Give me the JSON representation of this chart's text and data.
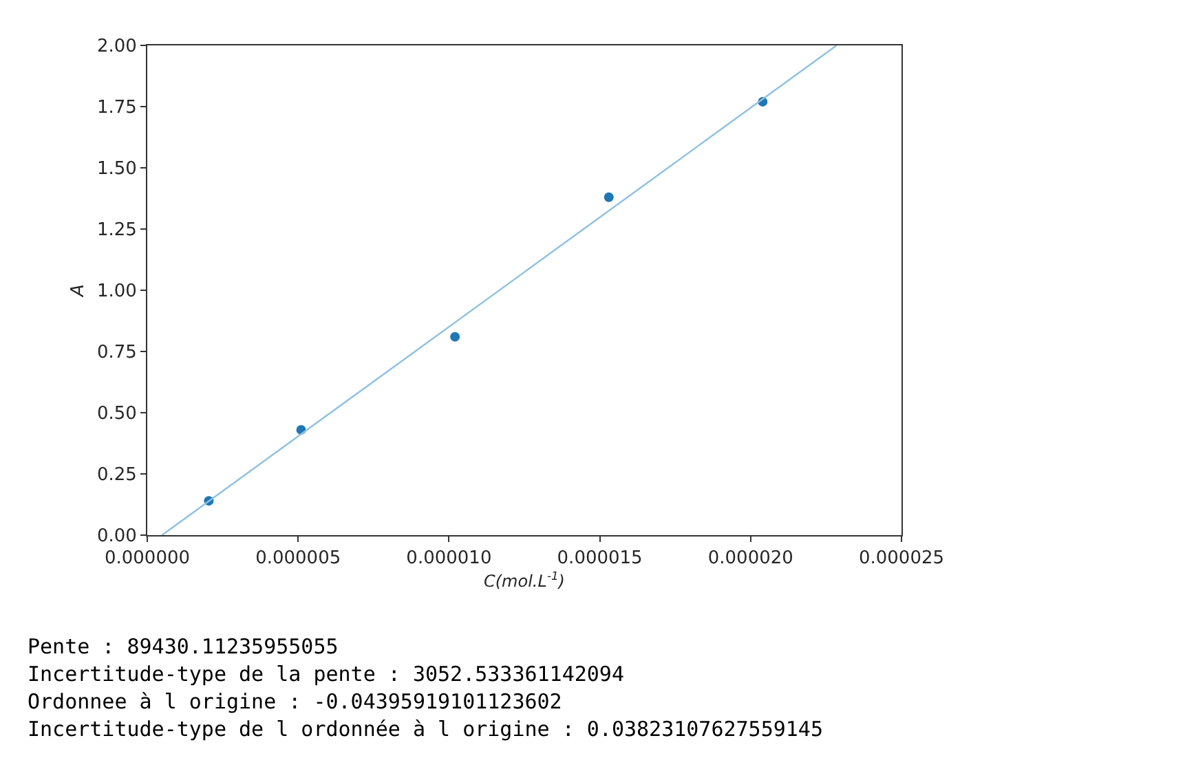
{
  "chart_data": {
    "type": "scatter",
    "xlabel": "C(mol.L$^{-1}$)",
    "ylabel": "A",
    "x": [
      2.04e-06,
      5.1e-06,
      1.02e-05,
      1.53e-05,
      2.04e-05
    ],
    "series": [
      {
        "color": "#1f77b4",
        "marker": "circle",
        "values": [
          0.14,
          0.43,
          0.81,
          1.38,
          1.77
        ]
      },
      {
        "type": "line",
        "color": "#8dc0e3",
        "marker": "none",
        "x": [
          4.9e-07,
          2.285e-05
        ],
        "values": [
          0.0,
          2.0
        ]
      }
    ],
    "xlim": [
      0,
      2.5e-05
    ],
    "xticks": [
      {
        "value": 0,
        "label": "0.000000"
      },
      {
        "value": 5e-06,
        "label": "0.000005"
      },
      {
        "value": 1e-05,
        "label": "0.000010"
      },
      {
        "value": 1.5e-05,
        "label": "0.000015"
      },
      {
        "value": 2e-05,
        "label": "0.000020"
      },
      {
        "value": 2.5e-05,
        "label": "0.000025"
      }
    ],
    "ylim": [
      0,
      2
    ],
    "yticks": [
      {
        "value": 0,
        "label": "0.00"
      },
      0.25,
      {
        "value": 0.5,
        "label": "0.50"
      },
      0.75,
      {
        "value": 1,
        "label": "1.00"
      },
      1.25,
      {
        "value": 1.5,
        "label": "1.50"
      },
      1.75,
      {
        "value": 2,
        "label": "2.00"
      }
    ],
    "annotations": [
      "Pente : 89430.11235955055",
      "Incertitude-type de la pente : 3052.533361142094",
      "Ordonnee à l origine : -0.04395919101123602",
      "Incertitude-type de l ordonnée à l origine : 0.03823107627559145"
    ]
  }
}
